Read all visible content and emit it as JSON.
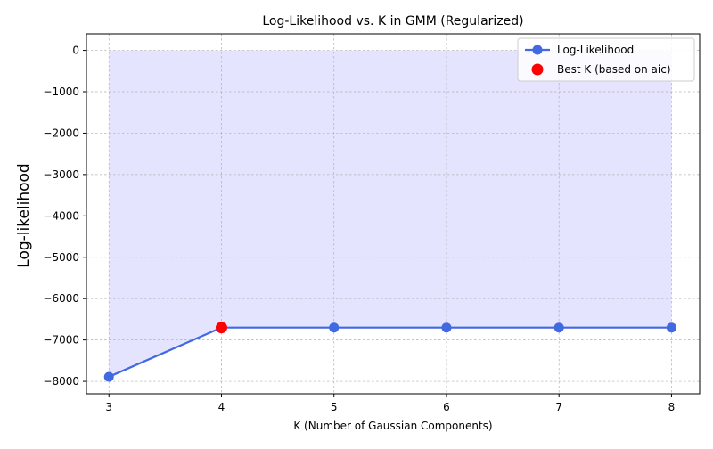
{
  "chart_data": {
    "type": "line",
    "title": "Log-Likelihood vs. K in GMM (Regularized)",
    "xlabel": "K (Number of Gaussian Components)",
    "ylabel": "Log-likelihood",
    "x": [
      3,
      4,
      5,
      6,
      7,
      8
    ],
    "series": [
      {
        "name": "Log-Likelihood",
        "values": [
          -7890,
          -6700,
          -6700,
          -6700,
          -6700,
          -6700
        ],
        "color": "#4169e1",
        "marker": "circle"
      }
    ],
    "best_k": {
      "name": "Best K (based on aic)",
      "x": 4,
      "y": -6700,
      "color": "#ff0000"
    },
    "fill_between": {
      "from": 0,
      "color": "#e4e4ff"
    },
    "xticks": [
      "3",
      "4",
      "5",
      "6",
      "7",
      "8"
    ],
    "yticks": [
      "0",
      "−1000",
      "−2000",
      "−3000",
      "−4000",
      "−5000",
      "−6000",
      "−7000",
      "−8000"
    ],
    "ytick_values": [
      0,
      -1000,
      -2000,
      -3000,
      -4000,
      -5000,
      -6000,
      -7000,
      -8000
    ],
    "xlim": [
      2.8,
      8.25
    ],
    "ylim": [
      -8300,
      400
    ],
    "grid": true,
    "legend_position": "upper right"
  }
}
